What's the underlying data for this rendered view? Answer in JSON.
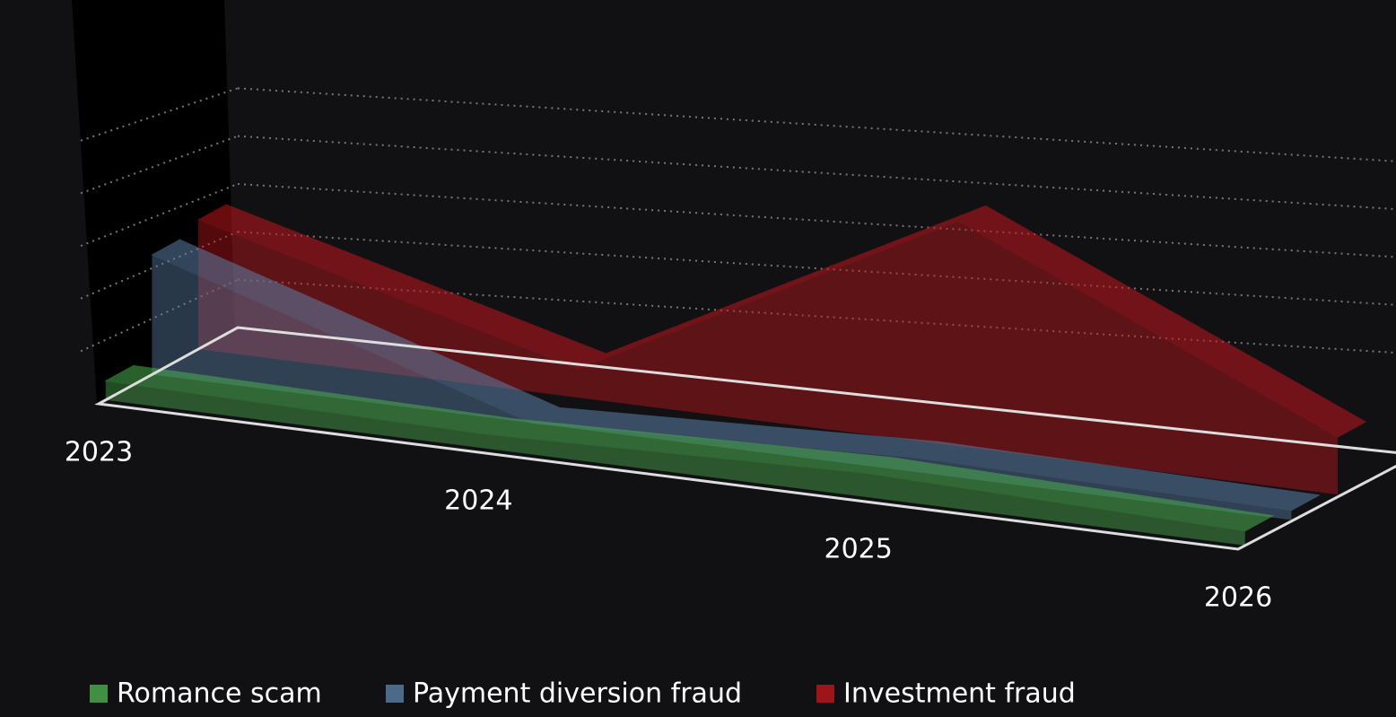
{
  "chart_data": {
    "type": "area3d",
    "categories": [
      "2023",
      "2024",
      "2025",
      "2026"
    ],
    "series": [
      {
        "name": "Romance scam",
        "color": "#4caf50",
        "values": [
          0.4,
          0.3,
          0.5,
          0.3
        ]
      },
      {
        "name": "Payment diversion fraud",
        "color": "#5b7fa6",
        "values": [
          2.5,
          0.0,
          0.3,
          0.2
        ]
      },
      {
        "name": "Investment fraud",
        "color": "#c0161c",
        "values": [
          2.7,
          0.6,
          4.7,
          1.2
        ]
      }
    ],
    "ylim": [
      0,
      6
    ],
    "yticks": [
      0,
      1,
      2,
      3,
      4,
      5
    ],
    "grid": true
  }
}
